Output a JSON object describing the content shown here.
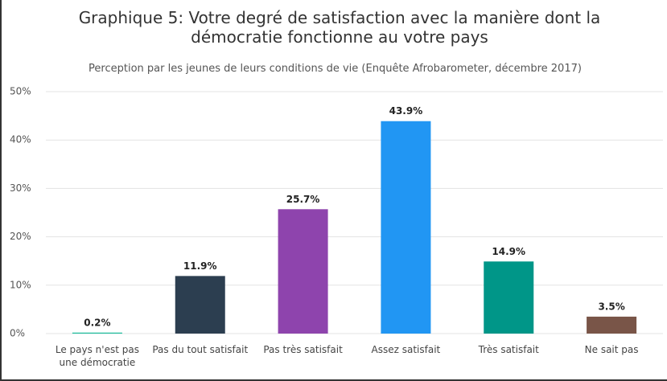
{
  "chart_data": {
    "type": "bar",
    "title": "Graphique 5: Votre degré de satisfaction avec la manière dont la démocratie fonctionne au votre pays",
    "subtitle": "Perception par les jeunes de leurs conditions de vie (Enquête Afrobarometer, décembre 2017)",
    "categories": [
      "Le pays n'est pas une démocratie",
      "Pas du tout satisfait",
      "Pas très satisfait",
      "Assez satisfait",
      "Très satisfait",
      "Ne sait pas"
    ],
    "values": [
      0.2,
      11.9,
      25.7,
      43.9,
      14.9,
      3.5
    ],
    "value_labels": [
      "0.2%",
      "11.9%",
      "25.7%",
      "43.9%",
      "14.9%",
      "3.5%"
    ],
    "colors": [
      "#1abc9c",
      "#2c3e50",
      "#8e44ad",
      "#2196f3",
      "#009688",
      "#795548"
    ],
    "ylim": [
      0,
      50
    ],
    "yticks": [
      {
        "value": 0,
        "label": "0%"
      },
      {
        "value": 10,
        "label": "10%"
      },
      {
        "value": 20,
        "label": "20%"
      },
      {
        "value": 30,
        "label": "30%"
      },
      {
        "value": 40,
        "label": "40%"
      },
      {
        "value": 50,
        "label": "50%"
      }
    ],
    "grid": true
  }
}
